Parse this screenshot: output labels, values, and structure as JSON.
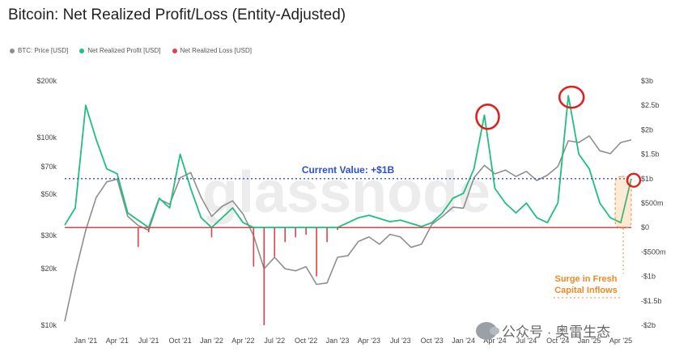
{
  "title": "Bitcoin: Net Realized Profit/Loss (Entity-Adjusted)",
  "watermark_text": "公众号 · 奥雷生态",
  "colors": {
    "price": "#8e8e8e",
    "profit": "#1fbf7f",
    "loss": "#e0404a",
    "current": "#2b4fd6",
    "highlight": "#f08a24",
    "circle": "#e02020"
  },
  "chart_data": {
    "type": "line",
    "title": "Bitcoin: Net Realized Profit/Loss (Entity-Adjusted)",
    "legend": [
      "BTC: Price [USD]",
      "Net Realized Profit [USD]",
      "Net Realized Loss [USD]"
    ],
    "left_axis": {
      "scale": "log",
      "ticks": [
        10000,
        20000,
        30000,
        50000,
        70000,
        100000,
        200000
      ],
      "tick_labels": [
        "$10k",
        "$20k",
        "$30k",
        "$50k",
        "$70k",
        "$100k",
        "$200k"
      ],
      "range": [
        10000,
        200000
      ]
    },
    "right_axis": {
      "ticks": [
        -2000000000,
        -1500000000,
        -1000000000,
        -500000000,
        0,
        500000000,
        1000000000,
        1500000000,
        2000000000,
        2500000000,
        3000000000
      ],
      "tick_labels": [
        "-$2b",
        "-$1.5b",
        "-$1b",
        "-$500m",
        "$0",
        "$500m",
        "$1b",
        "$1.5b",
        "$2b",
        "$2.5b",
        "$3b"
      ],
      "range": [
        -2000000000,
        3000000000
      ]
    },
    "x_tick_labels": [
      "Jan '21",
      "Apr '21",
      "Jul '21",
      "Oct '21",
      "Jan '22",
      "Apr '22",
      "Jul '22",
      "Oct '22",
      "Jan '23",
      "Apr '23",
      "Jul '23",
      "Oct '23",
      "Jan '24",
      "Apr '24",
      "Jul '24",
      "Oct '24",
      "Jan '25",
      "Apr '25"
    ],
    "x_range": [
      "2020-11",
      "2025-05"
    ],
    "series": [
      {
        "name": "BTC: Price [USD]",
        "axis": "left",
        "points": [
          [
            "2020-11",
            10500
          ],
          [
            "2020-12",
            19000
          ],
          [
            "2021-01",
            32000
          ],
          [
            "2021-02",
            48000
          ],
          [
            "2021-03",
            58000
          ],
          [
            "2021-04",
            60000
          ],
          [
            "2021-05",
            38000
          ],
          [
            "2021-06",
            34000
          ],
          [
            "2021-07",
            32000
          ],
          [
            "2021-08",
            47000
          ],
          [
            "2021-09",
            44000
          ],
          [
            "2021-10",
            61000
          ],
          [
            "2021-11",
            65000
          ],
          [
            "2021-12",
            48000
          ],
          [
            "2022-01",
            38000
          ],
          [
            "2022-02",
            43000
          ],
          [
            "2022-03",
            46000
          ],
          [
            "2022-04",
            39000
          ],
          [
            "2022-05",
            30000
          ],
          [
            "2022-06",
            20000
          ],
          [
            "2022-07",
            23000
          ],
          [
            "2022-08",
            20000
          ],
          [
            "2022-09",
            19500
          ],
          [
            "2022-10",
            20500
          ],
          [
            "2022-11",
            16500
          ],
          [
            "2022-12",
            16800
          ],
          [
            "2023-01",
            23000
          ],
          [
            "2023-02",
            23500
          ],
          [
            "2023-03",
            28000
          ],
          [
            "2023-04",
            29500
          ],
          [
            "2023-05",
            27000
          ],
          [
            "2023-06",
            30500
          ],
          [
            "2023-07",
            29500
          ],
          [
            "2023-08",
            26000
          ],
          [
            "2023-09",
            27000
          ],
          [
            "2023-10",
            34500
          ],
          [
            "2023-11",
            38000
          ],
          [
            "2023-12",
            42500
          ],
          [
            "2024-01",
            42000
          ],
          [
            "2024-02",
            61000
          ],
          [
            "2024-03",
            71000
          ],
          [
            "2024-04",
            64000
          ],
          [
            "2024-05",
            67000
          ],
          [
            "2024-06",
            62000
          ],
          [
            "2024-07",
            66000
          ],
          [
            "2024-08",
            59000
          ],
          [
            "2024-09",
            63000
          ],
          [
            "2024-10",
            70000
          ],
          [
            "2024-11",
            96000
          ],
          [
            "2024-12",
            94000
          ],
          [
            "2025-01",
            102000
          ],
          [
            "2025-02",
            85000
          ],
          [
            "2025-03",
            82000
          ],
          [
            "2025-04",
            94000
          ],
          [
            "2025-05",
            97000
          ]
        ]
      },
      {
        "name": "Net Realized Profit [USD]",
        "axis": "right",
        "points": [
          [
            "2020-11",
            50000000
          ],
          [
            "2020-12",
            400000000
          ],
          [
            "2021-01",
            2500000000
          ],
          [
            "2021-02",
            1800000000
          ],
          [
            "2021-03",
            1200000000
          ],
          [
            "2021-04",
            1100000000
          ],
          [
            "2021-05",
            300000000
          ],
          [
            "2021-07",
            0
          ],
          [
            "2021-08",
            600000000
          ],
          [
            "2021-09",
            400000000
          ],
          [
            "2021-10",
            1500000000
          ],
          [
            "2021-11",
            800000000
          ],
          [
            "2021-12",
            200000000
          ],
          [
            "2022-01",
            0
          ],
          [
            "2022-03",
            400000000
          ],
          [
            "2022-04",
            100000000
          ],
          [
            "2022-05",
            0
          ],
          [
            "2023-01",
            0
          ],
          [
            "2023-03",
            200000000
          ],
          [
            "2023-04",
            250000000
          ],
          [
            "2023-06",
            120000000
          ],
          [
            "2023-07",
            150000000
          ],
          [
            "2023-09",
            20000000
          ],
          [
            "2023-10",
            100000000
          ],
          [
            "2023-11",
            300000000
          ],
          [
            "2023-12",
            600000000
          ],
          [
            "2024-01",
            700000000
          ],
          [
            "2024-02",
            1200000000
          ],
          [
            "2024-03",
            2300000000
          ],
          [
            "2024-04",
            800000000
          ],
          [
            "2024-05",
            500000000
          ],
          [
            "2024-06",
            300000000
          ],
          [
            "2024-07",
            500000000
          ],
          [
            "2024-08",
            200000000
          ],
          [
            "2024-09",
            100000000
          ],
          [
            "2024-10",
            500000000
          ],
          [
            "2024-11",
            2700000000
          ],
          [
            "2024-12",
            1500000000
          ],
          [
            "2025-01",
            1200000000
          ],
          [
            "2025-02",
            500000000
          ],
          [
            "2025-03",
            200000000
          ],
          [
            "2025-04",
            100000000
          ],
          [
            "2025-05",
            1000000000
          ]
        ]
      },
      {
        "name": "Net Realized Loss [USD]",
        "axis": "right",
        "points": [
          [
            "2021-06",
            -400000000
          ],
          [
            "2021-07",
            -100000000
          ],
          [
            "2022-01",
            -200000000
          ],
          [
            "2022-05",
            -800000000
          ],
          [
            "2022-06",
            -2000000000
          ],
          [
            "2022-07",
            -600000000
          ],
          [
            "2022-08",
            -300000000
          ],
          [
            "2022-09",
            -200000000
          ],
          [
            "2022-10",
            -150000000
          ],
          [
            "2022-11",
            -1000000000
          ],
          [
            "2022-12",
            -300000000
          ],
          [
            "2023-01",
            -50000000
          ]
        ]
      }
    ],
    "annotations": [
      {
        "text": "Current Value: +$1B",
        "value": 1000000000
      },
      {
        "text": "Surge in Fresh Capital Inflows"
      }
    ],
    "grid": false
  }
}
